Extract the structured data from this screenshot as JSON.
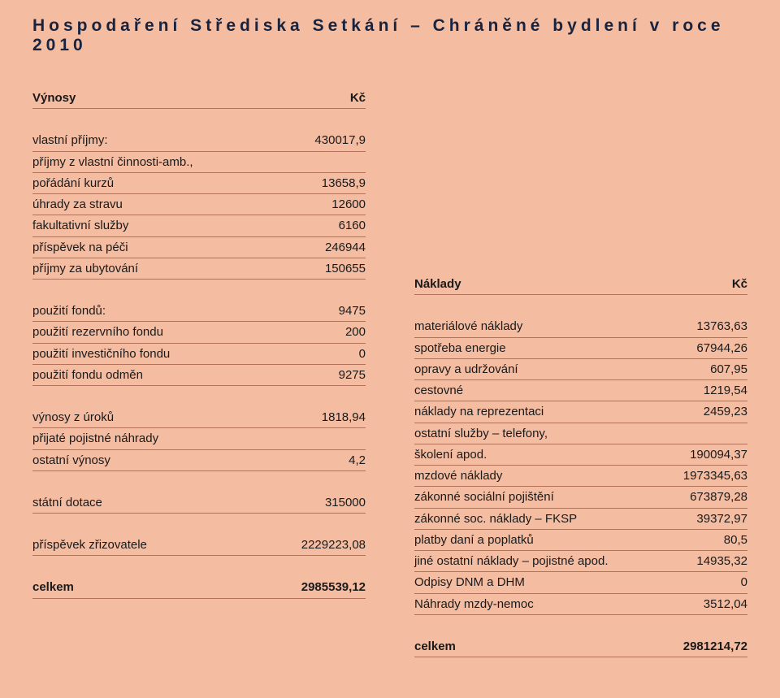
{
  "title": "Hospodaření Střediska Setkání – Chráněné bydlení v roce 2010",
  "left": {
    "header": {
      "label": "Výnosy",
      "value": "Kč"
    },
    "block1": [
      {
        "label": "vlastní příjmy:",
        "value": "430017,9"
      },
      {
        "label": "příjmy z vlastní činnosti-amb.,",
        "value": ""
      },
      {
        "label": "pořádání kurzů",
        "value": "13658,9"
      },
      {
        "label": "úhrady za stravu",
        "value": "12600"
      },
      {
        "label": "fakultativní služby",
        "value": "6160"
      },
      {
        "label": "příspěvek na péči",
        "value": "246944"
      },
      {
        "label": "příjmy za ubytování",
        "value": "150655"
      }
    ],
    "block2": [
      {
        "label": "použití fondů:",
        "value": "9475"
      },
      {
        "label": "použití rezervního fondu",
        "value": "200"
      },
      {
        "label": "použití investičního fondu",
        "value": "0"
      },
      {
        "label": "použití fondu odměn",
        "value": "9275"
      }
    ],
    "block3": [
      {
        "label": "výnosy z úroků",
        "value": "1818,94"
      },
      {
        "label": "přijaté pojistné náhrady",
        "value": ""
      },
      {
        "label": "ostatní výnosy",
        "value": "4,2"
      }
    ],
    "block4": [
      {
        "label": "státní dotace",
        "value": "315000"
      }
    ],
    "block5": [
      {
        "label": "příspěvek zřizovatele",
        "value": "2229223,08"
      }
    ],
    "total": {
      "label": "celkem",
      "value": "2985539,12"
    }
  },
  "right": {
    "header": {
      "label": "Náklady",
      "value": "Kč"
    },
    "rows": [
      {
        "label": "materiálové náklady",
        "value": "13763,63"
      },
      {
        "label": "spotřeba energie",
        "value": "67944,26"
      },
      {
        "label": "opravy a udržování",
        "value": "607,95"
      },
      {
        "label": "cestovné",
        "value": "1219,54"
      },
      {
        "label": "náklady na reprezentaci",
        "value": "2459,23"
      },
      {
        "label": "ostatní služby – telefony,",
        "value": ""
      },
      {
        "label": "školení apod.",
        "value": "190094,37"
      },
      {
        "label": "mzdové náklady",
        "value": "1973345,63"
      },
      {
        "label": "zákonné sociální pojištění",
        "value": "673879,28"
      },
      {
        "label": "zákonné soc. náklady – FKSP",
        "value": "39372,97"
      },
      {
        "label": "platby daní a poplatků",
        "value": "80,5"
      },
      {
        "label": "jiné ostatní náklady – pojistné apod.",
        "value": "14935,32"
      },
      {
        "label": "Odpisy DNM a DHM",
        "value": "0"
      },
      {
        "label": "Náhrady mzdy-nemoc",
        "value": "3512,04"
      }
    ],
    "total": {
      "label": "celkem",
      "value": "2981214,72"
    }
  }
}
